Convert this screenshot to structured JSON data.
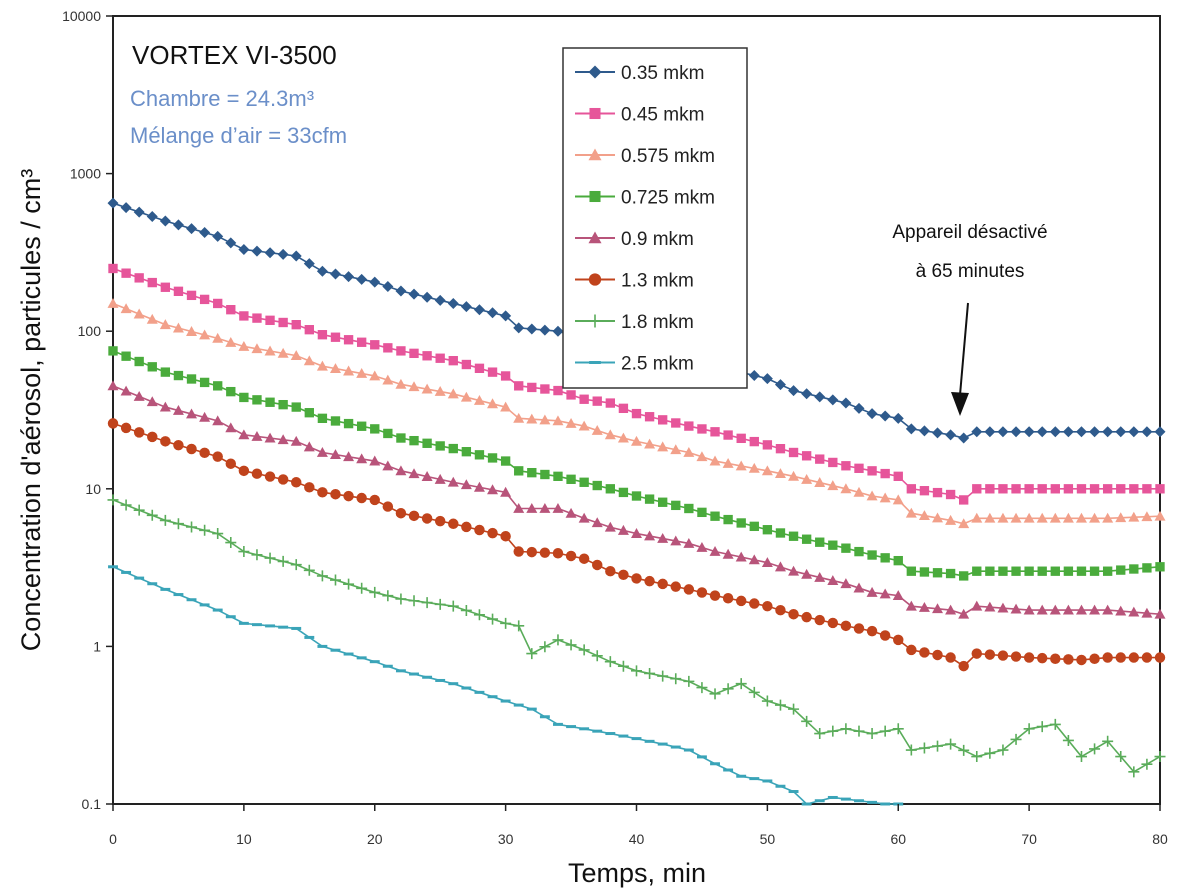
{
  "chart_data": {
    "type": "line",
    "title": "VORTEX VI-3500",
    "subtitle_lines": [
      "Chambre = 24.3m³",
      "Mélange d’air = 33cfm"
    ],
    "xlabel": "Temps, min",
    "ylabel": "Concentration d'aérosol, particules / cm³",
    "xlim": [
      0,
      80
    ],
    "ylim": [
      0.1,
      10000
    ],
    "y_scale": "log",
    "x_ticks": [
      0,
      10,
      20,
      30,
      40,
      50,
      60,
      70,
      80
    ],
    "y_ticks": [
      {
        "value": 0.1,
        "label": "0.1"
      },
      {
        "value": 1,
        "label": "1"
      },
      {
        "value": 10,
        "label": "10"
      },
      {
        "value": 100,
        "label": "100"
      },
      {
        "value": 1000,
        "label": "1000"
      },
      {
        "value": 10000,
        "label": "10000"
      }
    ],
    "grid": false,
    "legend_position": "top-center",
    "annotation": {
      "lines": [
        "Appareil désactivé",
        "à 65 minutes"
      ],
      "x": 65,
      "y": 22
    },
    "series": [
      {
        "name": "0.35 mkm",
        "color": "#2e5a8c",
        "marker": "diamond",
        "points": [
          [
            0,
            650
          ],
          [
            4,
            500
          ],
          [
            8,
            400
          ],
          [
            10,
            330
          ],
          [
            14,
            300
          ],
          [
            16,
            240
          ],
          [
            20,
            205
          ],
          [
            22,
            180
          ],
          [
            26,
            150
          ],
          [
            30,
            125
          ],
          [
            31,
            105
          ],
          [
            34,
            100
          ],
          [
            36,
            90
          ],
          [
            38,
            85
          ],
          [
            40,
            75
          ],
          [
            44,
            65
          ],
          [
            46,
            60
          ],
          [
            50,
            50
          ],
          [
            52,
            42
          ],
          [
            56,
            35
          ],
          [
            58,
            30
          ],
          [
            60,
            28
          ],
          [
            61,
            24
          ],
          [
            64,
            22
          ],
          [
            65,
            21
          ],
          [
            66,
            23
          ],
          [
            70,
            23
          ],
          [
            74,
            23
          ],
          [
            76,
            23
          ],
          [
            80,
            23
          ]
        ]
      },
      {
        "name": "0.45 mkm",
        "color": "#e6559a",
        "marker": "square",
        "points": [
          [
            0,
            250
          ],
          [
            4,
            190
          ],
          [
            8,
            150
          ],
          [
            10,
            125
          ],
          [
            14,
            110
          ],
          [
            16,
            95
          ],
          [
            20,
            82
          ],
          [
            22,
            75
          ],
          [
            26,
            65
          ],
          [
            30,
            52
          ],
          [
            31,
            45
          ],
          [
            34,
            42
          ],
          [
            36,
            37
          ],
          [
            38,
            35
          ],
          [
            40,
            30
          ],
          [
            44,
            25
          ],
          [
            46,
            23
          ],
          [
            50,
            19
          ],
          [
            52,
            17
          ],
          [
            56,
            14
          ],
          [
            58,
            13
          ],
          [
            60,
            12
          ],
          [
            61,
            10
          ],
          [
            64,
            9.2
          ],
          [
            65,
            8.5
          ],
          [
            66,
            10
          ],
          [
            70,
            10
          ],
          [
            74,
            10
          ],
          [
            76,
            10
          ],
          [
            80,
            10
          ]
        ]
      },
      {
        "name": "0.575 mkm",
        "color": "#f2a08a",
        "marker": "triangle",
        "points": [
          [
            0,
            150
          ],
          [
            4,
            110
          ],
          [
            8,
            90
          ],
          [
            10,
            80
          ],
          [
            14,
            70
          ],
          [
            16,
            60
          ],
          [
            20,
            52
          ],
          [
            22,
            46
          ],
          [
            26,
            40
          ],
          [
            30,
            33
          ],
          [
            31,
            28
          ],
          [
            34,
            27
          ],
          [
            36,
            25
          ],
          [
            38,
            22
          ],
          [
            40,
            20
          ],
          [
            44,
            17
          ],
          [
            46,
            15
          ],
          [
            50,
            13
          ],
          [
            52,
            12
          ],
          [
            56,
            10
          ],
          [
            58,
            9
          ],
          [
            60,
            8.5
          ],
          [
            61,
            7
          ],
          [
            64,
            6.3
          ],
          [
            65,
            6
          ],
          [
            66,
            6.5
          ],
          [
            70,
            6.5
          ],
          [
            74,
            6.5
          ],
          [
            76,
            6.5
          ],
          [
            80,
            6.7
          ]
        ]
      },
      {
        "name": "0.725 mkm",
        "color": "#4aab3c",
        "marker": "square",
        "points": [
          [
            0,
            75
          ],
          [
            4,
            55
          ],
          [
            8,
            45
          ],
          [
            10,
            38
          ],
          [
            14,
            33
          ],
          [
            16,
            28
          ],
          [
            20,
            24
          ],
          [
            22,
            21
          ],
          [
            26,
            18
          ],
          [
            30,
            15
          ],
          [
            31,
            13
          ],
          [
            34,
            12
          ],
          [
            36,
            11
          ],
          [
            38,
            10
          ],
          [
            40,
            9
          ],
          [
            44,
            7.5
          ],
          [
            46,
            6.7
          ],
          [
            50,
            5.5
          ],
          [
            52,
            5
          ],
          [
            56,
            4.2
          ],
          [
            58,
            3.8
          ],
          [
            60,
            3.5
          ],
          [
            61,
            3
          ],
          [
            64,
            2.9
          ],
          [
            65,
            2.8
          ],
          [
            66,
            3
          ],
          [
            70,
            3
          ],
          [
            74,
            3
          ],
          [
            76,
            3
          ],
          [
            80,
            3.2
          ]
        ]
      },
      {
        "name": "0.9 mkm",
        "color": "#b8547a",
        "marker": "triangle",
        "points": [
          [
            0,
            45
          ],
          [
            4,
            33
          ],
          [
            8,
            27
          ],
          [
            10,
            22
          ],
          [
            14,
            20
          ],
          [
            16,
            17
          ],
          [
            20,
            15
          ],
          [
            22,
            13
          ],
          [
            26,
            11
          ],
          [
            30,
            9.5
          ],
          [
            31,
            7.5
          ],
          [
            34,
            7.5
          ],
          [
            36,
            6.5
          ],
          [
            38,
            5.7
          ],
          [
            40,
            5.2
          ],
          [
            44,
            4.5
          ],
          [
            46,
            4
          ],
          [
            50,
            3.4
          ],
          [
            52,
            3
          ],
          [
            56,
            2.5
          ],
          [
            58,
            2.2
          ],
          [
            60,
            2.1
          ],
          [
            61,
            1.8
          ],
          [
            64,
            1.7
          ],
          [
            65,
            1.6
          ],
          [
            66,
            1.8
          ],
          [
            70,
            1.7
          ],
          [
            74,
            1.7
          ],
          [
            76,
            1.7
          ],
          [
            80,
            1.6
          ]
        ]
      },
      {
        "name": "1.3 mkm",
        "color": "#c0431c",
        "marker": "circle",
        "points": [
          [
            0,
            26
          ],
          [
            4,
            20
          ],
          [
            8,
            16
          ],
          [
            10,
            13
          ],
          [
            14,
            11
          ],
          [
            16,
            9.5
          ],
          [
            20,
            8.5
          ],
          [
            22,
            7
          ],
          [
            26,
            6
          ],
          [
            30,
            5
          ],
          [
            31,
            4
          ],
          [
            34,
            3.9
          ],
          [
            36,
            3.6
          ],
          [
            38,
            3
          ],
          [
            40,
            2.7
          ],
          [
            44,
            2.3
          ],
          [
            46,
            2.1
          ],
          [
            50,
            1.8
          ],
          [
            52,
            1.6
          ],
          [
            56,
            1.35
          ],
          [
            58,
            1.25
          ],
          [
            60,
            1.1
          ],
          [
            61,
            0.95
          ],
          [
            64,
            0.85
          ],
          [
            65,
            0.75
          ],
          [
            66,
            0.9
          ],
          [
            70,
            0.85
          ],
          [
            74,
            0.82
          ],
          [
            76,
            0.85
          ],
          [
            80,
            0.85
          ]
        ]
      },
      {
        "name": "1.8 mkm",
        "color": "#5aac5a",
        "marker": "plus",
        "points": [
          [
            0,
            8.5
          ],
          [
            4,
            6.3
          ],
          [
            8,
            5.2
          ],
          [
            10,
            4
          ],
          [
            14,
            3.3
          ],
          [
            16,
            2.8
          ],
          [
            20,
            2.2
          ],
          [
            22,
            2
          ],
          [
            26,
            1.8
          ],
          [
            30,
            1.4
          ],
          [
            31,
            1.35
          ],
          [
            32,
            0.9
          ],
          [
            34,
            1.1
          ],
          [
            36,
            0.95
          ],
          [
            38,
            0.8
          ],
          [
            40,
            0.7
          ],
          [
            44,
            0.6
          ],
          [
            46,
            0.5
          ],
          [
            48,
            0.58
          ],
          [
            50,
            0.45
          ],
          [
            52,
            0.4
          ],
          [
            54,
            0.28
          ],
          [
            56,
            0.3
          ],
          [
            58,
            0.28
          ],
          [
            60,
            0.3
          ],
          [
            61,
            0.22
          ],
          [
            64,
            0.24
          ],
          [
            66,
            0.2
          ],
          [
            68,
            0.22
          ],
          [
            70,
            0.3
          ],
          [
            72,
            0.32
          ],
          [
            74,
            0.2
          ],
          [
            76,
            0.25
          ],
          [
            78,
            0.16
          ],
          [
            80,
            0.2
          ]
        ]
      },
      {
        "name": "2.5 mkm",
        "color": "#3aa4b8",
        "marker": "dash",
        "points": [
          [
            0,
            3.2
          ],
          [
            4,
            2.3
          ],
          [
            8,
            1.7
          ],
          [
            10,
            1.4
          ],
          [
            14,
            1.3
          ],
          [
            16,
            1
          ],
          [
            20,
            0.8
          ],
          [
            22,
            0.7
          ],
          [
            26,
            0.58
          ],
          [
            30,
            0.45
          ],
          [
            32,
            0.4
          ],
          [
            34,
            0.32
          ],
          [
            36,
            0.3
          ],
          [
            38,
            0.28
          ],
          [
            40,
            0.26
          ],
          [
            42,
            0.24
          ],
          [
            44,
            0.22
          ],
          [
            46,
            0.18
          ],
          [
            48,
            0.15
          ],
          [
            50,
            0.14
          ],
          [
            52,
            0.12
          ],
          [
            53,
            0.1
          ],
          [
            55,
            0.11
          ],
          [
            59,
            0.1
          ],
          [
            60,
            0.1
          ]
        ]
      }
    ]
  }
}
